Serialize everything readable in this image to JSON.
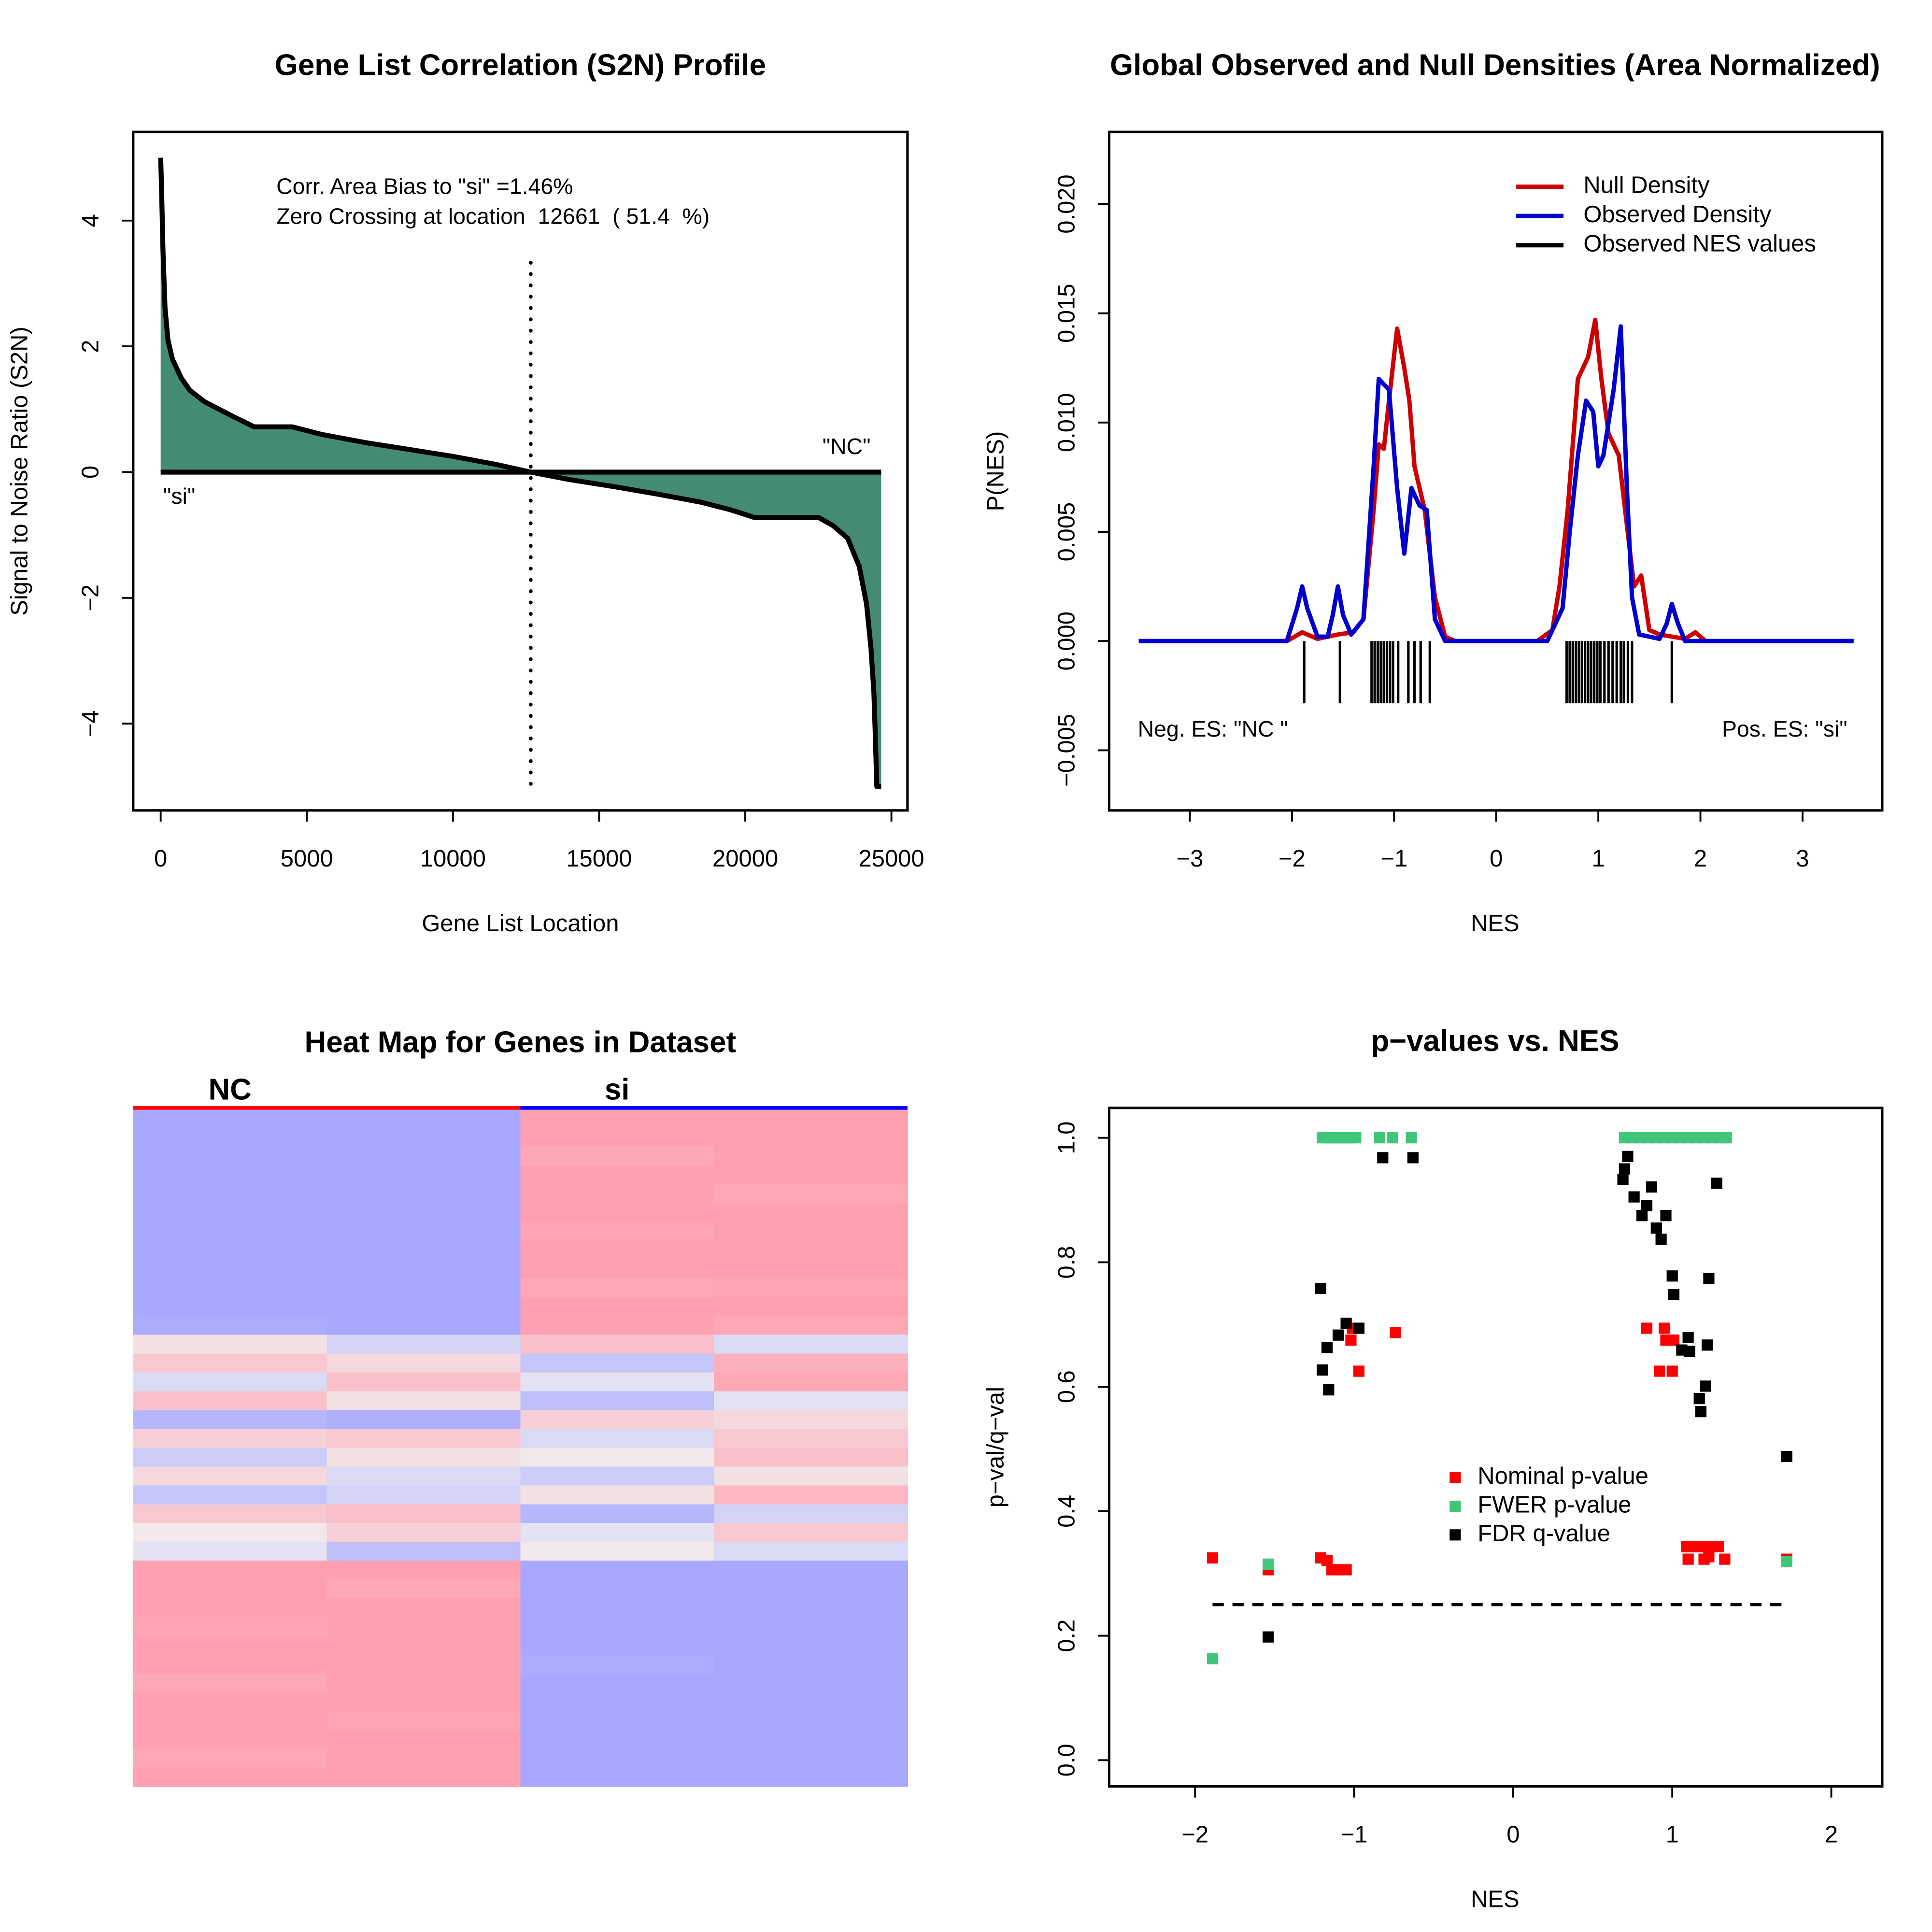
{
  "chart_data": [
    {
      "type": "area",
      "title": "Gene List Correlation (S2N) Profile",
      "xlabel": "Gene List Location",
      "ylabel": "Signal to Noise Ratio (S2N)",
      "x": [
        0,
        30,
        80,
        150,
        250,
        400,
        700,
        1000,
        1500,
        2000,
        2500,
        3200,
        4500,
        5500,
        7000,
        8500,
        10000,
        11500,
        12661,
        14000,
        15500,
        17000,
        18500,
        19500,
        20300,
        22500,
        23000,
        23500,
        23900,
        24150,
        24300,
        24400,
        24450,
        24500,
        24650
      ],
      "values": [
        5,
        4.5,
        3.5,
        2.6,
        2.1,
        1.8,
        1.5,
        1.3,
        1.12,
        1.0,
        0.88,
        0.72,
        0.72,
        0.6,
        0.47,
        0.36,
        0.25,
        0.12,
        0,
        -0.12,
        -0.23,
        -0.35,
        -0.48,
        -0.6,
        -0.72,
        -0.72,
        -0.85,
        -1.05,
        -1.5,
        -2.1,
        -2.8,
        -3.5,
        -4.2,
        -5,
        -5
      ],
      "color": "#458b74",
      "line_color": "#000000",
      "vline": 12661,
      "annotations": [
        "Corr. Area Bias to \"si\" =1.46%",
        "Zero Crossing at location  12661  ( 51.4  %)",
        "\"NC\"",
        "\"si\""
      ],
      "xlim": [
        -940,
        25550
      ],
      "ylim": [
        -5.38,
        5.41
      ],
      "xticks": [
        0,
        5000,
        10000,
        15000,
        20000,
        25000
      ],
      "yticks": [
        {
          "value": -4,
          "label": "−4"
        },
        {
          "value": -2,
          "label": "−2"
        },
        0,
        2,
        4
      ]
    },
    {
      "type": "line",
      "title": "Global Observed and Null Densities (Area Normalized)",
      "xlabel": "NES",
      "ylabel": "P(NES)",
      "series": [
        {
          "name": "Null Density",
          "color": "#cc0000",
          "x": [
            -3.5,
            -2.05,
            -1.9,
            -1.75,
            -1.55,
            -1.4,
            -1.3,
            -1.2,
            -1.15,
            -1.1,
            -1.05,
            -0.97,
            -0.9,
            -0.85,
            -0.8,
            -0.7,
            -0.6,
            -0.5,
            -0.4,
            0.4,
            0.55,
            0.62,
            0.7,
            0.8,
            0.85,
            0.9,
            0.97,
            1.03,
            1.1,
            1.2,
            1.25,
            1.3,
            1.35,
            1.42,
            1.5,
            1.6,
            1.85,
            1.95,
            2.05,
            3.5
          ],
          "values": [
            0,
            0,
            0.0004,
            0.0001,
            0.0003,
            0.0004,
            0.001,
            0.006,
            0.009,
            0.0088,
            0.011,
            0.0143,
            0.0125,
            0.011,
            0.008,
            0.006,
            0.002,
            0.0002,
            0,
            0,
            0.0005,
            0.0025,
            0.006,
            0.012,
            0.0125,
            0.013,
            0.0147,
            0.012,
            0.0095,
            0.0085,
            0.0065,
            0.0045,
            0.0025,
            0.003,
            0.0005,
            0.0003,
            0.0001,
            0.0004,
            0,
            0
          ]
        },
        {
          "name": "Observed Density",
          "color": "#0000cc",
          "x": [
            -3.5,
            -2.05,
            -1.95,
            -1.9,
            -1.85,
            -1.75,
            -1.65,
            -1.6,
            -1.55,
            -1.5,
            -1.42,
            -1.3,
            -1.2,
            -1.15,
            -1.05,
            -0.97,
            -0.9,
            -0.83,
            -0.75,
            -0.68,
            -0.6,
            -0.5,
            0.5,
            0.65,
            0.72,
            0.8,
            0.88,
            0.95,
            1.0,
            1.05,
            1.15,
            1.22,
            1.28,
            1.33,
            1.4,
            1.6,
            1.67,
            1.72,
            1.78,
            1.85,
            3.5
          ],
          "values": [
            0,
            0,
            0.0015,
            0.0025,
            0.0015,
            0.0002,
            0.0002,
            0.0012,
            0.0025,
            0.0012,
            0.0003,
            0.001,
            0.008,
            0.012,
            0.0115,
            0.007,
            0.004,
            0.007,
            0.0062,
            0.006,
            0.001,
            0,
            0,
            0.0015,
            0.005,
            0.0085,
            0.011,
            0.0105,
            0.008,
            0.0085,
            0.0115,
            0.0144,
            0.007,
            0.002,
            0.0003,
            0.0001,
            0.0008,
            0.0017,
            0.0008,
            0,
            0
          ]
        }
      ],
      "rug": {
        "name": "Observed NES values",
        "color": "#000000",
        "values": [
          -1.88,
          -1.53,
          -1.22,
          -1.19,
          -1.16,
          -1.13,
          -1.1,
          -1.07,
          -1.04,
          -1.01,
          -0.96,
          -0.86,
          -0.8,
          -0.74,
          -0.65,
          0.69,
          0.72,
          0.75,
          0.78,
          0.81,
          0.84,
          0.87,
          0.9,
          0.93,
          0.96,
          0.99,
          1.02,
          1.06,
          1.1,
          1.14,
          1.18,
          1.22,
          1.25,
          1.29,
          1.33,
          1.72
        ]
      },
      "annotations": [
        "Neg. ES: \"NC \"",
        "Pos. ES: \"si\""
      ],
      "legend": "topright",
      "xlim": [
        -3.79,
        3.78
      ],
      "ylim": [
        -0.00775,
        0.0233
      ],
      "xticks": [
        {
          "value": -3,
          "label": "−3"
        },
        {
          "value": -2,
          "label": "−2"
        },
        {
          "value": -1,
          "label": "−1"
        },
        0,
        1,
        2,
        3
      ],
      "yticks": [
        {
          "value": -0.005,
          "label": "−0.005"
        },
        {
          "value": 0,
          "label": "0.000"
        },
        {
          "value": 0.005,
          "label": "0.005"
        },
        {
          "value": 0.01,
          "label": "0.010"
        },
        {
          "value": 0.015,
          "label": "0.015"
        },
        {
          "value": 0.02,
          "label": "0.020"
        }
      ]
    },
    {
      "type": "heatmap",
      "title": "Heat Map for Genes in Dataset",
      "groups": [
        {
          "name": "NC",
          "color": "#ff0000"
        },
        {
          "name": "si",
          "color": "#0000ff"
        }
      ],
      "colors": [
        "#a8a8ff",
        "#f0f0f0",
        "#ffa0b0"
      ],
      "zlim": [
        -1,
        1
      ],
      "values": [
        [
          -1,
          -1,
          1,
          1
        ],
        [
          -1,
          -1,
          1,
          1
        ],
        [
          -1,
          -1,
          0.9,
          1
        ],
        [
          -1,
          -1,
          1,
          1
        ],
        [
          -1,
          -1,
          1,
          0.9
        ],
        [
          -1,
          -1,
          1,
          1
        ],
        [
          -1,
          -1,
          0.95,
          1
        ],
        [
          -1,
          -1,
          1,
          1
        ],
        [
          -1,
          -1,
          1,
          1
        ],
        [
          -1,
          -1,
          0.9,
          0.95
        ],
        [
          -1,
          -1,
          1,
          1
        ],
        [
          -0.95,
          -1,
          1,
          0.9
        ],
        [
          0.2,
          -0.4,
          0.6,
          -0.3
        ],
        [
          0.5,
          0.3,
          -0.6,
          0.8
        ],
        [
          -0.3,
          0.6,
          -0.2,
          0.9
        ],
        [
          0.6,
          0.2,
          -0.7,
          -0.2
        ],
        [
          -0.8,
          -0.9,
          0.4,
          0.3
        ],
        [
          0.4,
          0.5,
          -0.3,
          0.5
        ],
        [
          -0.5,
          0.2,
          0.1,
          0.6
        ],
        [
          0.3,
          -0.3,
          -0.5,
          0.2
        ],
        [
          -0.6,
          -0.4,
          0.2,
          0.7
        ],
        [
          0.5,
          0.6,
          -0.8,
          -0.4
        ],
        [
          0.1,
          0.4,
          -0.2,
          0.5
        ],
        [
          -0.2,
          -0.7,
          0.1,
          -0.3
        ],
        [
          1,
          1,
          -1,
          -1
        ],
        [
          1,
          0.9,
          -1,
          -1
        ],
        [
          1,
          1,
          -1,
          -1
        ],
        [
          0.95,
          1,
          -1,
          -1
        ],
        [
          1,
          1,
          -1,
          -1
        ],
        [
          1,
          1,
          -0.95,
          -1
        ],
        [
          0.9,
          1,
          -1,
          -1
        ],
        [
          1,
          1,
          -1,
          -1
        ],
        [
          1,
          0.95,
          -1,
          -1
        ],
        [
          1,
          1,
          -1,
          -1
        ],
        [
          0.9,
          1,
          -1,
          -1
        ],
        [
          1,
          1,
          -1,
          -1
        ]
      ]
    },
    {
      "type": "scatter",
      "title": "p−values vs. NES",
      "xlabel": "NES",
      "ylabel": "p−val/q−val",
      "series": [
        {
          "name": "Nominal p-value",
          "color": "#ff0000",
          "x": [
            -1.89,
            -1.54,
            -1.21,
            -1.17,
            -1.14,
            -1.1,
            -1.05,
            -1.01,
            -1.02,
            -0.97,
            -0.74,
            0.84,
            0.95,
            0.92,
            1.0,
            0.96,
            1.01,
            1.09,
            1.13,
            1.17,
            1.21,
            1.25,
            1.29,
            1.1,
            1.2,
            1.23,
            1.33,
            1.72
          ],
          "values": [
            0.325,
            0.306,
            0.325,
            0.321,
            0.306,
            0.306,
            0.306,
            0.694,
            0.675,
            0.625,
            0.687,
            0.694,
            0.694,
            0.625,
            0.625,
            0.675,
            0.675,
            0.343,
            0.343,
            0.343,
            0.343,
            0.343,
            0.343,
            0.323,
            0.323,
            0.327,
            0.323,
            0.323
          ]
        },
        {
          "name": "FWER p-value",
          "color": "#40c67a",
          "x": [
            -1.89,
            -1.54,
            -1.2,
            -1.17,
            -1.14,
            -1.11,
            -1.08,
            -1.05,
            -1.02,
            -0.99,
            -0.84,
            -0.76,
            -0.64,
            0.7,
            0.75,
            0.8,
            0.85,
            0.9,
            0.95,
            1.0,
            1.05,
            1.1,
            1.15,
            1.2,
            1.25,
            1.3,
            1.34,
            1.72
          ],
          "values": [
            0.163,
            0.315,
            1,
            1,
            1,
            1,
            1,
            1,
            1,
            1,
            1,
            1,
            1,
            1,
            1,
            1,
            1,
            1,
            1,
            1,
            1,
            1,
            1,
            1,
            1,
            1,
            1,
            0.319
          ]
        },
        {
          "name": "FDR q-value",
          "color": "#000000",
          "x": [
            -1.54,
            -1.21,
            -1.17,
            -1.2,
            -1.16,
            -1.1,
            -1.05,
            -0.97,
            -0.82,
            -0.63,
            0.69,
            0.7,
            0.72,
            0.76,
            0.81,
            0.84,
            0.87,
            0.9,
            0.93,
            0.96,
            1.0,
            1.01,
            1.06,
            1.1,
            1.11,
            1.17,
            1.18,
            1.21,
            1.22,
            1.23,
            1.28,
            1.72
          ],
          "values": [
            0.198,
            0.758,
            0.663,
            0.627,
            0.595,
            0.683,
            0.702,
            0.694,
            0.968,
            0.968,
            0.933,
            0.95,
            0.97,
            0.905,
            0.875,
            0.891,
            0.921,
            0.855,
            0.837,
            0.875,
            0.778,
            0.748,
            0.659,
            0.679,
            0.657,
            0.581,
            0.56,
            0.601,
            0.667,
            0.774,
            0.927,
            0.488
          ]
        }
      ],
      "hline": 0.25,
      "legend": "center",
      "xlim": [
        -2.54,
        2.32
      ],
      "ylim": [
        -0.042,
        1.048
      ],
      "xticks": [
        {
          "value": -2,
          "label": "−2"
        },
        {
          "value": -1,
          "label": "−1"
        },
        0,
        1,
        2
      ],
      "yticks": [
        {
          "value": 0,
          "label": "0.0"
        },
        0.2,
        0.4,
        0.6,
        0.8,
        {
          "value": 1,
          "label": "1.0"
        }
      ]
    }
  ]
}
